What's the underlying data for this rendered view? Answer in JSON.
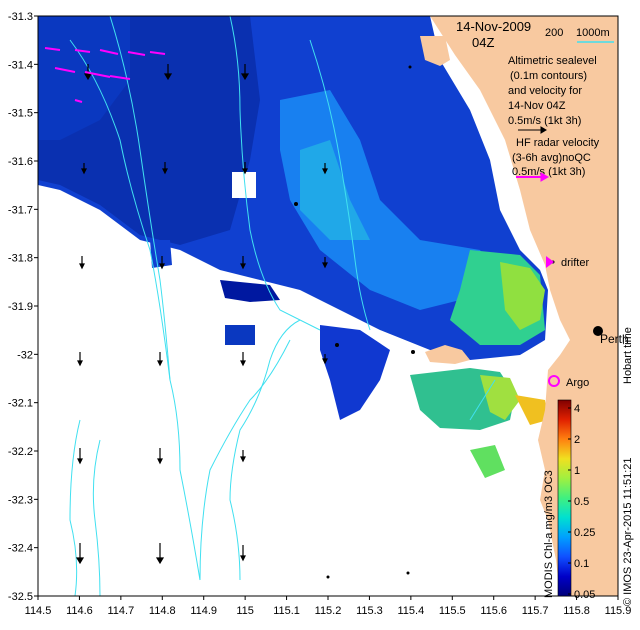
{
  "title": {
    "date": "14-Nov-2009",
    "time": "04Z"
  },
  "scale_bar": {
    "left": "200",
    "right": "1000m"
  },
  "legend": {
    "altimetry": [
      "Altimetric sealevel",
      "(0.1m contours)",
      "and velocity for",
      "14-Nov 04Z",
      "0.5m/s (1kt 3h)"
    ],
    "hf_radar": [
      "HF radar velocity",
      "(3-6h avg)noQC",
      "0.5m/s (1kt 3h)"
    ],
    "drifter": "drifter",
    "argo": "Argo",
    "city": "Perth",
    "hobart": "Hobart time"
  },
  "credit": "© IMOS 23-Apr-2015 11:51:21",
  "colorbar": {
    "title": "MODIS Chl-a mg/m3 OC3",
    "labels": [
      "4",
      "2",
      "1",
      "0.5",
      "0.25",
      "0.1",
      "0.05"
    ],
    "colors": [
      "#00007a",
      "#0000c8",
      "#1050ff",
      "#00a0ff",
      "#00e0d0",
      "#40f080",
      "#a0f040",
      "#f0e020",
      "#ff8010",
      "#e02000",
      "#800000"
    ]
  },
  "axes": {
    "x_ticks": [
      "114.5",
      "114.6",
      "114.7",
      "114.8",
      "114.9",
      "115",
      "115.1",
      "115.2",
      "115.3",
      "115.4",
      "115.5",
      "115.6",
      "115.7",
      "115.8",
      "115.9"
    ],
    "y_ticks": [
      "-31.3",
      "-31.4",
      "-31.5",
      "-31.6",
      "-31.7",
      "-31.8",
      "-31.9",
      "-32",
      "-32.1",
      "-32.2",
      "-32.3",
      "-32.4",
      "-32.5"
    ]
  },
  "colors": {
    "land": "#f8c9a0",
    "contour": "#40e0f0",
    "hf_arrow": "#ff00ff"
  }
}
